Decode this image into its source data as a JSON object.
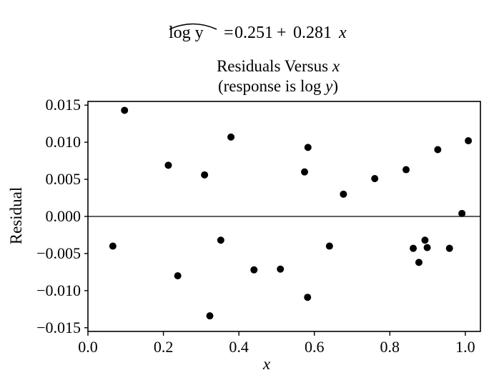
{
  "equation": {
    "lhs": "log y",
    "equals": "=",
    "intercept": "0.251",
    "plus": "+",
    "slope": "0.281",
    "variable": "x"
  },
  "chart_data": {
    "type": "scatter",
    "title_line1_text": "Residuals Versus",
    "title_line1_var": "x",
    "title_line2_text": "(response is log",
    "title_line2_var": "y",
    "title_line2_close": ")",
    "xlabel": "x",
    "ylabel": "Residual",
    "xlim": [
      0.0,
      1.04
    ],
    "ylim": [
      -0.0155,
      0.0155
    ],
    "xticks": [
      0.0,
      0.2,
      0.4,
      0.6,
      0.8,
      1.0
    ],
    "xtick_labels": [
      "0.0",
      "0.2",
      "0.4",
      "0.6",
      "0.8",
      "1.0"
    ],
    "yticks": [
      0.015,
      0.01,
      0.005,
      0.0,
      -0.005,
      -0.01,
      -0.015
    ],
    "ytick_labels": [
      "0.015",
      "0.010",
      "0.005",
      "0.000",
      "−0.005",
      "−0.010",
      "−0.015"
    ],
    "reference_line_y": 0.0,
    "grid": false,
    "marker_color": "#000000",
    "points": [
      {
        "x": 0.097,
        "y": 0.0143
      },
      {
        "x": 0.066,
        "y": -0.004
      },
      {
        "x": 0.213,
        "y": 0.0069
      },
      {
        "x": 0.238,
        "y": -0.008
      },
      {
        "x": 0.309,
        "y": 0.0056
      },
      {
        "x": 0.323,
        "y": -0.0134
      },
      {
        "x": 0.352,
        "y": -0.0032
      },
      {
        "x": 0.379,
        "y": 0.0107
      },
      {
        "x": 0.44,
        "y": -0.0072
      },
      {
        "x": 0.51,
        "y": -0.0071
      },
      {
        "x": 0.574,
        "y": 0.006
      },
      {
        "x": 0.583,
        "y": 0.0093
      },
      {
        "x": 0.582,
        "y": -0.0109
      },
      {
        "x": 0.64,
        "y": -0.004
      },
      {
        "x": 0.677,
        "y": 0.003
      },
      {
        "x": 0.76,
        "y": 0.0051
      },
      {
        "x": 0.843,
        "y": 0.0063
      },
      {
        "x": 0.862,
        "y": -0.0043
      },
      {
        "x": 0.877,
        "y": -0.0062
      },
      {
        "x": 0.893,
        "y": -0.0032
      },
      {
        "x": 0.899,
        "y": -0.0042
      },
      {
        "x": 0.927,
        "y": 0.009
      },
      {
        "x": 0.958,
        "y": -0.0043
      },
      {
        "x": 0.991,
        "y": 0.0004
      },
      {
        "x": 1.008,
        "y": 0.0102
      }
    ]
  }
}
